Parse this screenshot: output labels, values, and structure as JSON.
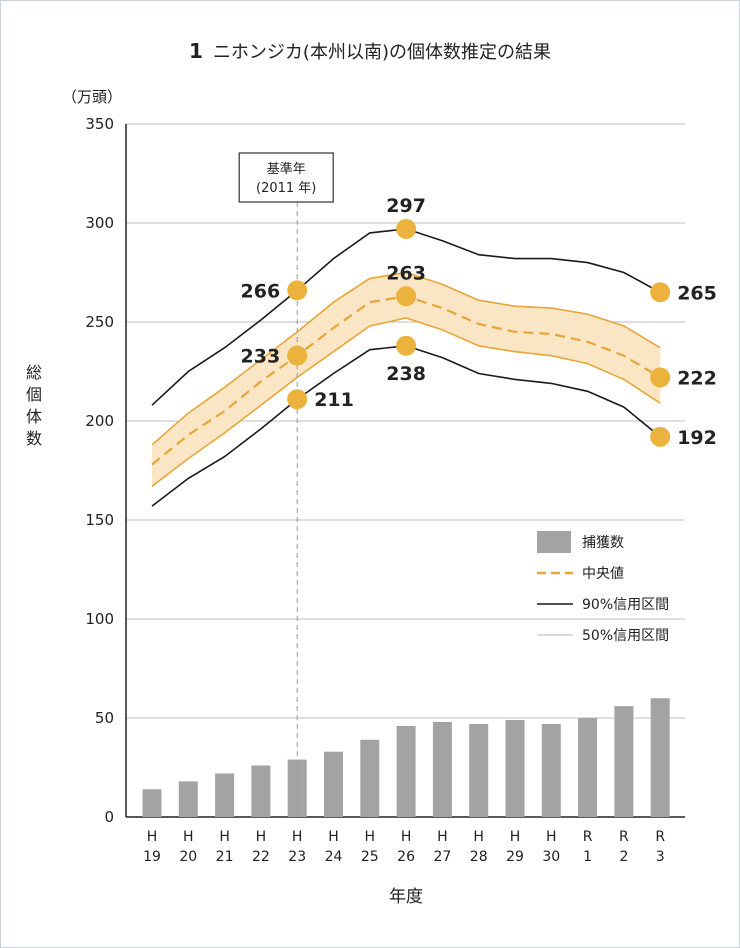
{
  "title": {
    "number": "1",
    "text": "ニホンジカ(本州以南)の個体数推定の結果"
  },
  "chart_data": {
    "type": "line",
    "unit_label": "（万頭）",
    "ylabel": "総個体数",
    "xlabel": "年度",
    "ylim": [
      0,
      350
    ],
    "yticks": [
      0,
      50,
      100,
      150,
      200,
      250,
      300,
      350
    ],
    "categories": [
      {
        "top": "H",
        "bottom": "19"
      },
      {
        "top": "H",
        "bottom": "20"
      },
      {
        "top": "H",
        "bottom": "21"
      },
      {
        "top": "H",
        "bottom": "22"
      },
      {
        "top": "H",
        "bottom": "23"
      },
      {
        "top": "H",
        "bottom": "24"
      },
      {
        "top": "H",
        "bottom": "25"
      },
      {
        "top": "H",
        "bottom": "26"
      },
      {
        "top": "H",
        "bottom": "27"
      },
      {
        "top": "H",
        "bottom": "28"
      },
      {
        "top": "H",
        "bottom": "29"
      },
      {
        "top": "H",
        "bottom": "30"
      },
      {
        "top": "R",
        "bottom": "1"
      },
      {
        "top": "R",
        "bottom": "2"
      },
      {
        "top": "R",
        "bottom": "3"
      }
    ],
    "series": [
      {
        "name": "捕獲数",
        "kind": "bar",
        "color": "#a3a3a3",
        "values": [
          14,
          18,
          22,
          26,
          29,
          33,
          39,
          46,
          48,
          47,
          49,
          47,
          50,
          56,
          60
        ]
      },
      {
        "name": "中央値",
        "kind": "line-dashed",
        "color": "#e8a53a",
        "values": [
          178,
          193,
          205,
          220,
          233,
          247,
          260,
          263,
          257,
          249,
          245,
          244,
          240,
          233,
          222
        ]
      },
      {
        "name": "90%信用区間",
        "kind": "band-lines",
        "color": "#1a1a1a",
        "upper": [
          208,
          225,
          237,
          251,
          266,
          282,
          295,
          297,
          291,
          284,
          282,
          282,
          280,
          275,
          265
        ],
        "lower": [
          157,
          171,
          182,
          196,
          211,
          224,
          236,
          238,
          232,
          224,
          221,
          219,
          215,
          207,
          192
        ]
      },
      {
        "name": "50%信用区間",
        "kind": "band-fill",
        "color": "#e8a53a",
        "fill": "#fae6c4",
        "upper": [
          188,
          204,
          217,
          231,
          245,
          260,
          272,
          275,
          269,
          261,
          258,
          257,
          254,
          248,
          237
        ],
        "lower": [
          167,
          181,
          194,
          208,
          222,
          235,
          248,
          252,
          246,
          238,
          235,
          233,
          229,
          221,
          209
        ]
      }
    ],
    "points": [
      {
        "index": 4,
        "value": 266,
        "label": "266",
        "side": "left"
      },
      {
        "index": 4,
        "value": 233,
        "label": "233",
        "side": "left"
      },
      {
        "index": 4,
        "value": 211,
        "label": "211",
        "side": "right"
      },
      {
        "index": 7,
        "value": 297,
        "label": "297",
        "side": "above"
      },
      {
        "index": 7,
        "value": 263,
        "label": "263",
        "side": "above"
      },
      {
        "index": 7,
        "value": 238,
        "label": "238",
        "side": "below"
      },
      {
        "index": 14,
        "value": 265,
        "label": "265",
        "side": "right"
      },
      {
        "index": 14,
        "value": 222,
        "label": "222",
        "side": "right"
      },
      {
        "index": 14,
        "value": 192,
        "label": "192",
        "side": "right"
      }
    ],
    "point_color": "#ecb23e",
    "annotation": {
      "index": 4,
      "line1": "基準年",
      "line2": "(2011 年)"
    },
    "grid": true,
    "legend_position": "right-middle"
  }
}
